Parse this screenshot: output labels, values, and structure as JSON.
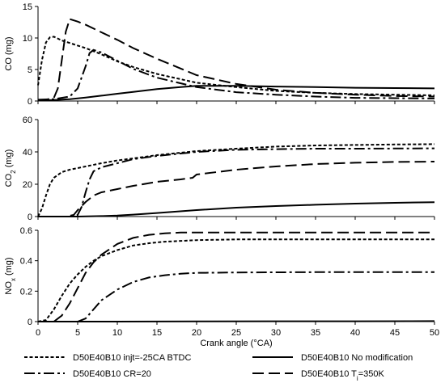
{
  "chart_data": {
    "type": "line",
    "xlabel": "Crank angle (°CA)",
    "xlim": [
      0,
      50
    ],
    "xticks": [
      0,
      5,
      10,
      15,
      20,
      25,
      30,
      35,
      40,
      45,
      50
    ],
    "legend_position": "bottom",
    "grid": false,
    "series_styles": [
      {
        "name": "D50E40B10 injt=-25CA BTDC",
        "dash": "short-dash"
      },
      {
        "name": "D50E40B10 No modification",
        "dash": "solid"
      },
      {
        "name": "D50E40B10 CR=20",
        "dash": "dash-dot"
      },
      {
        "name": "D50E40B10 T",
        "name_sub": "i",
        "name_suffix": "=350K",
        "dash": "long-dash"
      }
    ],
    "panels": [
      {
        "ylabel": "CO (mg)",
        "ylim": [
          0,
          15
        ],
        "yticks": [
          0,
          5,
          10,
          15
        ],
        "series": [
          {
            "name": "D50E40B10 injt=-25CA BTDC",
            "x": [
              0,
              0.5,
              1,
              1.5,
              2,
              3,
              4,
              5,
              6,
              8,
              10,
              12,
              15,
              20,
              25,
              30,
              35,
              40,
              45,
              50
            ],
            "y": [
              2.5,
              6.5,
              9.3,
              10.1,
              10.2,
              9.6,
              9.2,
              8.8,
              8.4,
              7.4,
              6.3,
              5.4,
              4.3,
              2.9,
              2.2,
              1.6,
              1.3,
              1.1,
              1.0,
              0.9
            ]
          },
          {
            "name": "D50E40B10 No modification",
            "x": [
              0,
              2,
              4,
              6,
              8,
              10,
              12,
              15,
              18,
              20,
              25,
              30,
              35,
              40,
              45,
              50
            ],
            "y": [
              0.1,
              0.15,
              0.3,
              0.55,
              0.85,
              1.15,
              1.45,
              1.9,
              2.2,
              2.4,
              2.4,
              2.3,
              2.2,
              2.1,
              2.05,
              2.0
            ]
          },
          {
            "name": "D50E40B10 CR=20",
            "x": [
              0,
              2,
              4,
              5,
              6,
              6.5,
              7,
              8,
              10,
              12,
              15,
              20,
              25,
              30,
              35,
              40,
              45,
              50
            ],
            "y": [
              0.2,
              0.3,
              0.7,
              2.0,
              5.5,
              7.6,
              8.1,
              7.7,
              6.4,
              5.1,
              3.7,
              2.2,
              1.4,
              1.0,
              0.7,
              0.5,
              0.45,
              0.4
            ]
          },
          {
            "name": "D50E40B10 T=350K",
            "x": [
              0,
              1,
              2,
              2.5,
              3,
              3.5,
              4,
              5,
              6,
              8,
              10,
              12,
              15,
              20,
              25,
              30,
              35,
              40,
              45,
              50
            ],
            "y": [
              0.1,
              0.2,
              0.5,
              2.0,
              6.5,
              11.0,
              13.0,
              12.6,
              12.1,
              10.9,
              9.7,
              8.4,
              6.7,
              4.1,
              2.7,
              1.8,
              1.3,
              1.0,
              0.8,
              0.7
            ]
          }
        ]
      },
      {
        "ylabel": "CO",
        "ylabel_sub": "2",
        "ylabel_suffix": " (mg)",
        "ylim": [
          0,
          60
        ],
        "yticks": [
          0,
          20,
          40,
          60
        ],
        "series": [
          {
            "name": "D50E40B10 injt=-25CA BTDC",
            "x": [
              0,
              0.5,
              1,
              1.5,
              2,
              3,
              4,
              5,
              6,
              8,
              10,
              12,
              15,
              20,
              25,
              30,
              35,
              40,
              45,
              50
            ],
            "y": [
              0,
              5,
              13,
              20,
              24,
              27.5,
              29,
              30,
              31,
              33,
              34.7,
              36,
              38,
              40.5,
              42,
              43.3,
              44,
              44.3,
              44.6,
              44.8
            ]
          },
          {
            "name": "D50E40B10 No modification",
            "x": [
              0,
              5,
              8,
              10,
              12,
              15,
              20,
              25,
              30,
              35,
              40,
              45,
              50
            ],
            "y": [
              0,
              0,
              0.3,
              0.6,
              1.2,
              2.2,
              4.0,
              5.5,
              6.5,
              7.3,
              8.0,
              8.5,
              8.9
            ]
          },
          {
            "name": "D50E40B10 CR=20",
            "x": [
              0,
              4,
              5,
              5.5,
              6,
              6.5,
              7,
              8,
              10,
              12,
              15,
              20,
              25,
              30,
              35,
              40,
              45,
              50
            ],
            "y": [
              0,
              0,
              1,
              6,
              15,
              23,
              28,
              30.5,
              33,
              35.5,
              37.5,
              40,
              41.3,
              41.7,
              42,
              42,
              42.1,
              42.2
            ]
          },
          {
            "name": "D50E40B10 T=350K",
            "x": [
              0,
              3.5,
              4.5,
              5,
              6,
              7,
              8,
              10,
              12,
              15,
              18,
              19.5,
              20,
              25,
              30,
              35,
              40,
              45,
              50
            ],
            "y": [
              0,
              0,
              1,
              4,
              9,
              13,
              15,
              17,
              19,
              21.5,
              23,
              24,
              26,
              29,
              31,
              32.5,
              33.3,
              33.8,
              34
            ]
          }
        ]
      },
      {
        "ylabel": "NO",
        "ylabel_sub": "x",
        "ylabel_suffix": " (mg)",
        "ylim": [
          0,
          0.6
        ],
        "yticks": [
          0,
          0.2,
          0.4,
          0.6
        ],
        "series": [
          {
            "name": "D50E40B10 injt=-25CA BTDC",
            "x": [
              0,
              1,
              2,
              3,
              4,
              5,
              6,
              7,
              8,
              10,
              12,
              14,
              16,
              20,
              25,
              30,
              35,
              40,
              45,
              50
            ],
            "y": [
              0,
              0.01,
              0.08,
              0.17,
              0.25,
              0.31,
              0.36,
              0.4,
              0.43,
              0.47,
              0.5,
              0.515,
              0.525,
              0.535,
              0.54,
              0.54,
              0.54,
              0.54,
              0.54,
              0.54
            ]
          },
          {
            "name": "D50E40B10 No modification",
            "x": [
              0,
              10,
              20,
              30,
              40,
              50
            ],
            "y": [
              0,
              0,
              0.001,
              0.002,
              0.002,
              0.003
            ]
          },
          {
            "name": "D50E40B10 CR=20",
            "x": [
              0,
              5,
              6,
              7,
              8,
              10,
              12,
              14,
              16,
              18,
              20,
              25,
              30,
              35,
              40,
              45,
              50
            ],
            "y": [
              0,
              0,
              0.02,
              0.08,
              0.14,
              0.21,
              0.26,
              0.29,
              0.305,
              0.315,
              0.32,
              0.323,
              0.324,
              0.325,
              0.325,
              0.325,
              0.325
            ]
          },
          {
            "name": "D50E40B10 T=350K",
            "x": [
              0,
              2,
              3,
              4,
              5,
              6,
              7,
              8,
              10,
              12,
              14,
              16,
              18,
              20,
              25,
              30,
              35,
              40,
              45,
              50
            ],
            "y": [
              0,
              0,
              0.04,
              0.12,
              0.22,
              0.32,
              0.39,
              0.44,
              0.51,
              0.55,
              0.57,
              0.58,
              0.585,
              0.585,
              0.585,
              0.585,
              0.585,
              0.585,
              0.585,
              0.585
            ]
          }
        ]
      }
    ]
  }
}
